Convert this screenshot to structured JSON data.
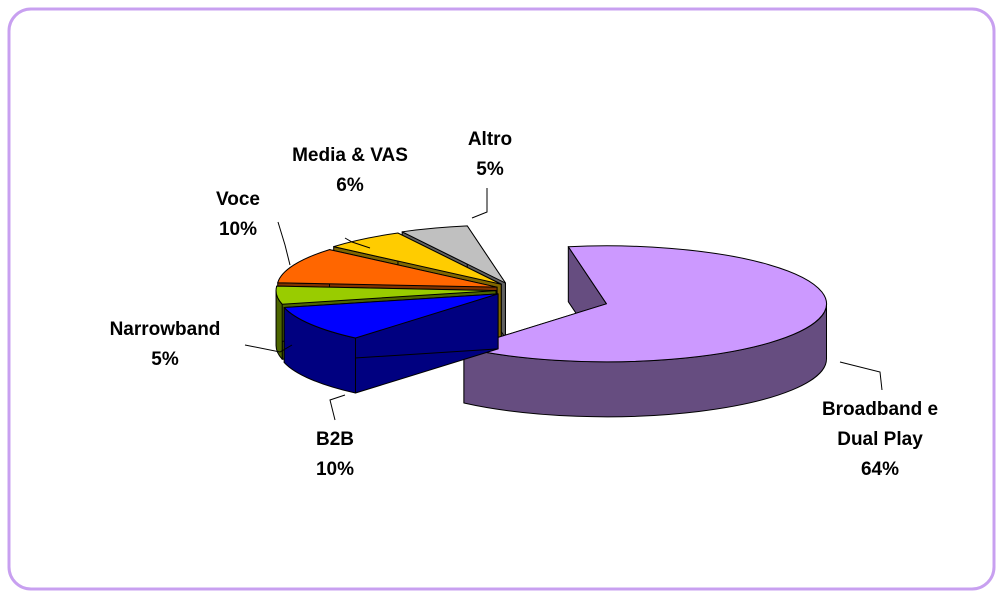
{
  "chart_data": {
    "type": "pie",
    "3d": true,
    "categories": [
      "Broadband e Dual Play",
      "B2B",
      "Narrowband",
      "Voce",
      "Media & VAS",
      "Altro"
    ],
    "values": [
      64,
      10,
      5,
      10,
      6,
      5
    ],
    "value_labels": [
      "64%",
      "10%",
      "5%",
      "10%",
      "6%",
      "5%"
    ],
    "colors": [
      "#cc99ff",
      "#0000ff",
      "#99cc00",
      "#ff6600",
      "#ffcc00",
      "#c0c0c0"
    ]
  }
}
